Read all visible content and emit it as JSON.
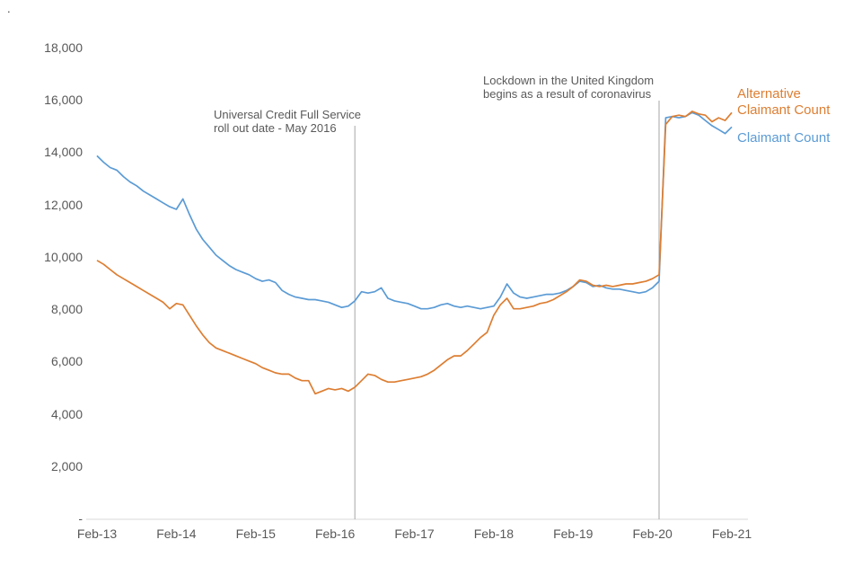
{
  "page": {
    "corner_mark": "."
  },
  "chart_data": {
    "type": "line",
    "title": "",
    "xlabel": "",
    "ylabel": "",
    "ylim": [
      0,
      18000
    ],
    "x_start": "Feb-13",
    "x_interval": "monthly",
    "grid": "off",
    "legend_position": "right-of-line-ends",
    "x_ticks": [
      "Feb-13",
      "Feb-14",
      "Feb-15",
      "Feb-16",
      "Feb-17",
      "Feb-18",
      "Feb-19",
      "Feb-20",
      "Feb-21"
    ],
    "y_ticks": [
      {
        "value": 18000,
        "label": "18,000"
      },
      {
        "value": 16000,
        "label": "16,000"
      },
      {
        "value": 14000,
        "label": "14,000"
      },
      {
        "value": 12000,
        "label": "12,000"
      },
      {
        "value": 10000,
        "label": "10,000"
      },
      {
        "value": 8000,
        "label": "8,000"
      },
      {
        "value": 6000,
        "label": "6,000"
      },
      {
        "value": 4000,
        "label": "4,000"
      },
      {
        "value": 2000,
        "label": "2,000"
      },
      {
        "value": 0,
        "label": "-"
      }
    ],
    "series": [
      {
        "name": "Claimant Count",
        "color": "#5b9bd5",
        "values": [
          13900,
          13650,
          13450,
          13350,
          13100,
          12900,
          12750,
          12550,
          12400,
          12250,
          12100,
          11950,
          11850,
          12250,
          11650,
          11100,
          10700,
          10400,
          10100,
          9900,
          9700,
          9550,
          9450,
          9350,
          9200,
          9100,
          9150,
          9050,
          8750,
          8600,
          8500,
          8450,
          8400,
          8400,
          8350,
          8300,
          8200,
          8100,
          8150,
          8350,
          8700,
          8650,
          8700,
          8850,
          8450,
          8350,
          8300,
          8250,
          8150,
          8050,
          8050,
          8100,
          8200,
          8250,
          8150,
          8100,
          8150,
          8100,
          8050,
          8100,
          8150,
          8500,
          9000,
          8650,
          8500,
          8450,
          8500,
          8550,
          8600,
          8600,
          8650,
          8750,
          8900,
          9100,
          9050,
          8900,
          8950,
          8850,
          8800,
          8800,
          8750,
          8700,
          8650,
          8700,
          8850,
          9100,
          15350,
          15400,
          15350,
          15400,
          15550,
          15450,
          15250,
          15050,
          14900,
          14750,
          15000
        ]
      },
      {
        "name": "Alternative Claimant Count",
        "color": "#dd7e32",
        "values": [
          9900,
          9750,
          9550,
          9350,
          9200,
          9050,
          8900,
          8750,
          8600,
          8450,
          8300,
          8050,
          8250,
          8200,
          7800,
          7400,
          7050,
          6750,
          6550,
          6450,
          6350,
          6250,
          6150,
          6050,
          5950,
          5800,
          5700,
          5600,
          5550,
          5550,
          5400,
          5300,
          5300,
          4800,
          4900,
          5000,
          4950,
          5000,
          4900,
          5050,
          5300,
          5550,
          5500,
          5350,
          5250,
          5250,
          5300,
          5350,
          5400,
          5450,
          5550,
          5700,
          5900,
          6100,
          6250,
          6250,
          6450,
          6700,
          6950,
          7150,
          7800,
          8200,
          8450,
          8050,
          8050,
          8100,
          8150,
          8250,
          8300,
          8400,
          8550,
          8700,
          8900,
          9150,
          9100,
          8950,
          8900,
          8950,
          8900,
          8950,
          9000,
          9000,
          9050,
          9100,
          9200,
          9350,
          15100,
          15400,
          15450,
          15400,
          15600,
          15500,
          15450,
          15200,
          15350,
          15250,
          15550
        ]
      }
    ],
    "annotations": [
      {
        "text_lines": [
          "Universal Credit Full Service",
          "roll out date - May 2016"
        ],
        "month_index": 39
      },
      {
        "text_lines": [
          "Lockdown in the United Kingdom",
          "begins as a result of coronavirus"
        ],
        "month_index": 85
      }
    ],
    "legend": {
      "alternative": {
        "label": "Alternative Claimant Count",
        "color": "#dd7e32"
      },
      "claimant": {
        "label": "Claimant Count",
        "color": "#5b9bd5"
      }
    }
  }
}
